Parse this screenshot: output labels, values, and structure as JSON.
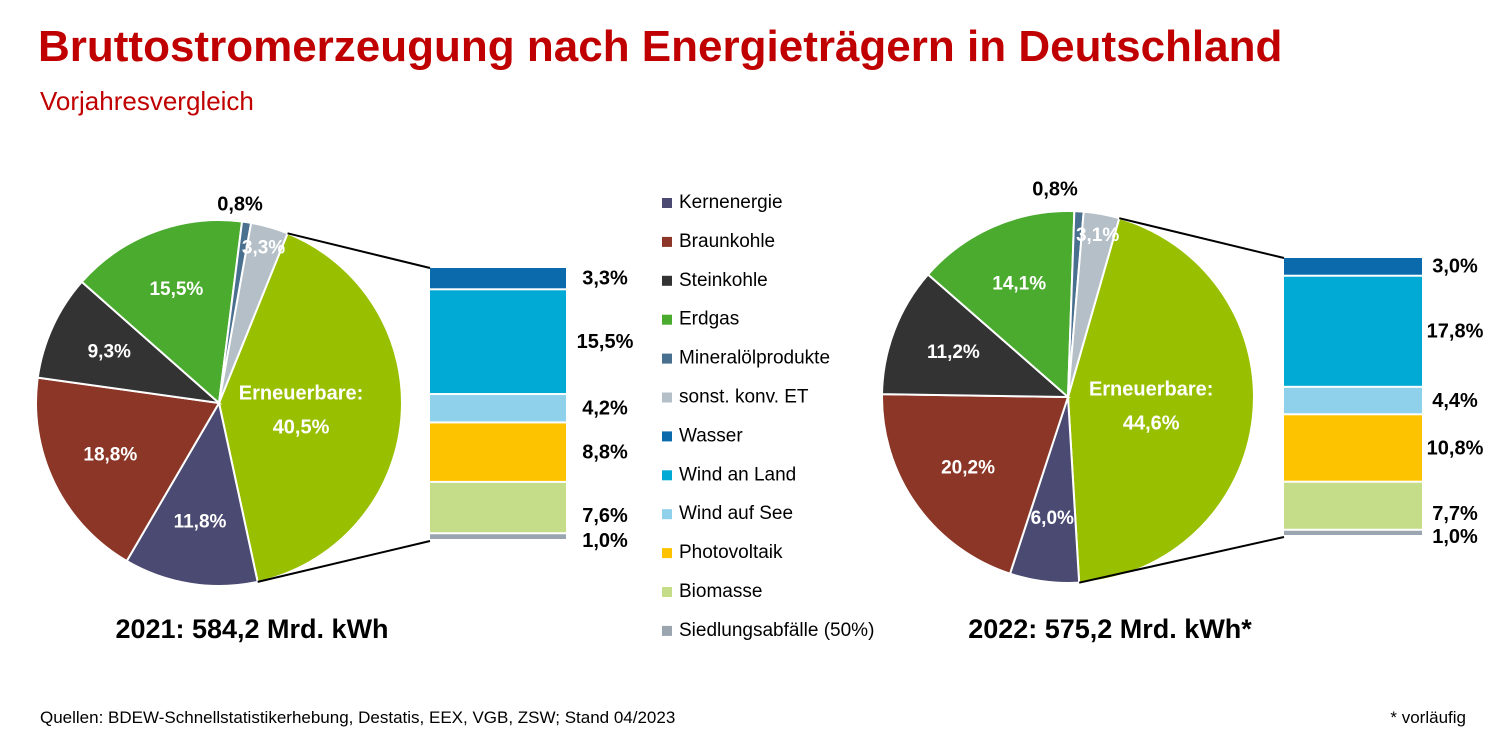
{
  "title": "Bruttostromerzeugung nach Energieträgern in Deutschland",
  "subtitle": "Vorjahresvergleich",
  "footer": {
    "sources": "Quellen: BDEW-Schnellstatistikerhebung, Destatis, EEX, VGB, ZSW; Stand 04/2023",
    "note": "* vorläufig"
  },
  "colors": {
    "Kernenergie": "#4a4a72",
    "Braunkohle": "#8b3626",
    "Steinkohle": "#333333",
    "Erdgas": "#4aab2f",
    "Mineralölprodukte": "#4a7090",
    "sonst. konv. ET": "#b4bfc8",
    "Wasser": "#0a6aac",
    "Wind an Land": "#00aad4",
    "Wind auf See": "#8fd0ea",
    "Photovoltaik": "#fdc300",
    "Biomasse": "#c5dc89",
    "Siedlungsabfälle (50%)": "#9aa5b0",
    "Erneuerbare": "#99c000"
  },
  "chart_data": [
    {
      "type": "pie",
      "caption": "2021: 584,2 Mrd. kWh",
      "pie_slices": [
        {
          "category": "Erneuerbare",
          "value": 40.5,
          "label": "Erneuerbare:",
          "label2": "40,5%"
        },
        {
          "category": "Kernenergie",
          "value": 11.8,
          "label": "11,8%"
        },
        {
          "category": "Braunkohle",
          "value": 18.8,
          "label": "18,8%"
        },
        {
          "category": "Steinkohle",
          "value": 9.3,
          "label": "9,3%"
        },
        {
          "category": "Erdgas",
          "value": 15.5,
          "label": "15,5%"
        },
        {
          "category": "Mineralölprodukte",
          "value": 0.8,
          "label": "0,8%"
        },
        {
          "category": "sonst. konv. ET",
          "value": 3.3,
          "label": "3,3%"
        }
      ],
      "renewables_breakdown": [
        {
          "category": "Wasser",
          "value": 3.3,
          "label": "3,3%"
        },
        {
          "category": "Wind an Land",
          "value": 15.5,
          "label": "15,5%"
        },
        {
          "category": "Wind auf See",
          "value": 4.2,
          "label": "4,2%"
        },
        {
          "category": "Photovoltaik",
          "value": 8.8,
          "label": "8,8%"
        },
        {
          "category": "Biomasse",
          "value": 7.6,
          "label": "7,6%"
        },
        {
          "category": "Siedlungsabfälle (50%)",
          "value": 1.0,
          "label": "1,0%"
        }
      ]
    },
    {
      "type": "pie",
      "caption": "2022: 575,2 Mrd. kWh*",
      "pie_slices": [
        {
          "category": "Erneuerbare",
          "value": 44.6,
          "label": "Erneuerbare:",
          "label2": "44,6%"
        },
        {
          "category": "Kernenergie",
          "value": 6.0,
          "label": "6,0%"
        },
        {
          "category": "Braunkohle",
          "value": 20.2,
          "label": "20,2%"
        },
        {
          "category": "Steinkohle",
          "value": 11.2,
          "label": "11,2%"
        },
        {
          "category": "Erdgas",
          "value": 14.1,
          "label": "14,1%"
        },
        {
          "category": "Mineralölprodukte",
          "value": 0.8,
          "label": "0,8%"
        },
        {
          "category": "sonst. konv. ET",
          "value": 3.1,
          "label": "3,1%"
        }
      ],
      "renewables_breakdown": [
        {
          "category": "Wasser",
          "value": 3.0,
          "label": "3,0%"
        },
        {
          "category": "Wind an Land",
          "value": 17.8,
          "label": "17,8%"
        },
        {
          "category": "Wind auf See",
          "value": 4.4,
          "label": "4,4%"
        },
        {
          "category": "Photovoltaik",
          "value": 10.8,
          "label": "10,8%"
        },
        {
          "category": "Biomasse",
          "value": 7.7,
          "label": "7,7%"
        },
        {
          "category": "Siedlungsabfälle (50%)",
          "value": 1.0,
          "label": "1,0%"
        }
      ]
    }
  ],
  "legend": [
    "Kernenergie",
    "Braunkohle",
    "Steinkohle",
    "Erdgas",
    "Mineralölprodukte",
    "sonst. konv. ET",
    "Wasser",
    "Wind an Land",
    "Wind auf See",
    "Photovoltaik",
    "Biomasse",
    "Siedlungsabfälle (50%)"
  ]
}
